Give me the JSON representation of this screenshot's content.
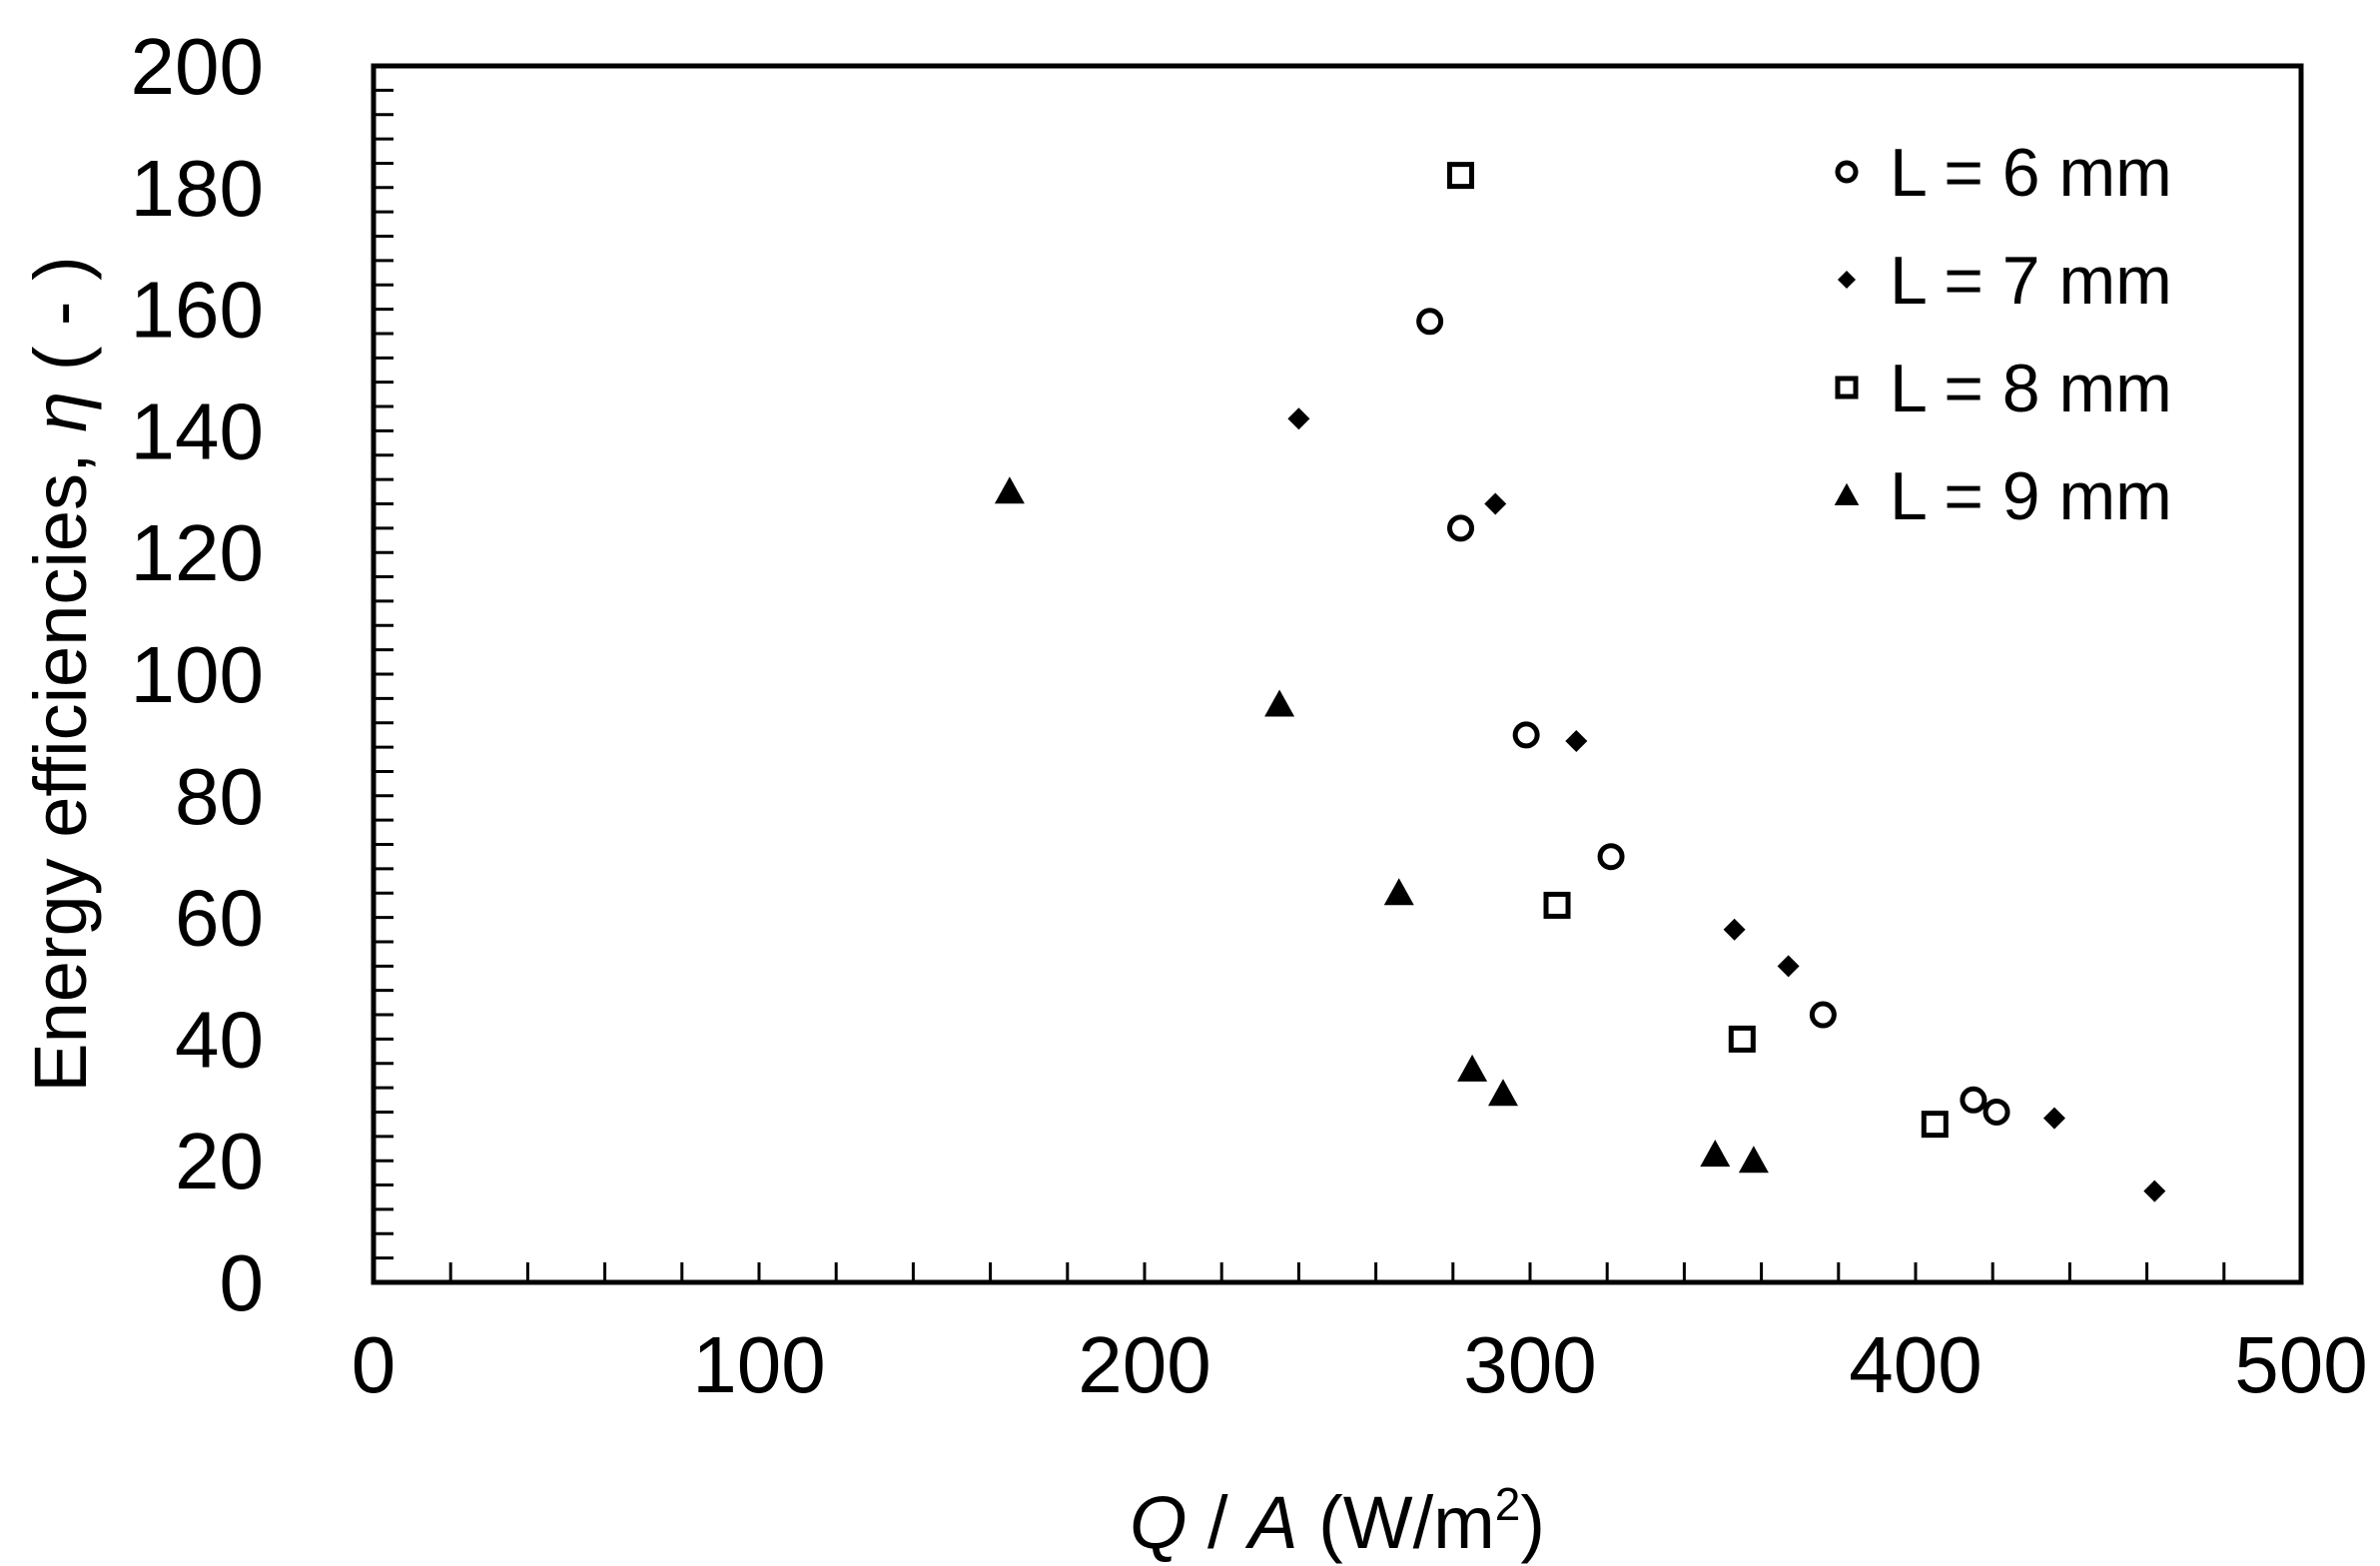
{
  "chart_data": {
    "type": "scatter",
    "xlim": [
      0,
      500
    ],
    "ylim": [
      0,
      200
    ],
    "x_ticks": [
      0,
      100,
      200,
      300,
      400,
      500
    ],
    "y_ticks": [
      0,
      20,
      40,
      60,
      80,
      100,
      120,
      140,
      160,
      180,
      200
    ],
    "x_minor_step": 20,
    "y_minor_step": 4,
    "xlabel": {
      "var1": "Q",
      "sep": " / ",
      "var2": "A",
      "unit_prefix": " (W/m",
      "unit_sup": "2",
      "unit_suffix": ")"
    },
    "ylabel": {
      "prefix": "Energy efficiencies, ",
      "symbol": "η",
      "suffix": " ( - )"
    },
    "grid": false,
    "legend_position": "top-right",
    "series": [
      {
        "name": "L = 6 mm",
        "marker": "circle-open",
        "points": [
          {
            "x": 274,
            "y": 158
          },
          {
            "x": 282,
            "y": 124
          },
          {
            "x": 299,
            "y": 90
          },
          {
            "x": 321,
            "y": 70
          },
          {
            "x": 376,
            "y": 44
          },
          {
            "x": 415,
            "y": 30
          },
          {
            "x": 421,
            "y": 28
          }
        ]
      },
      {
        "name": "L = 7 mm",
        "marker": "diamond-filled",
        "points": [
          {
            "x": 240,
            "y": 142
          },
          {
            "x": 291,
            "y": 128
          },
          {
            "x": 312,
            "y": 89
          },
          {
            "x": 353,
            "y": 58
          },
          {
            "x": 367,
            "y": 52
          },
          {
            "x": 436,
            "y": 27
          },
          {
            "x": 462,
            "y": 15
          }
        ]
      },
      {
        "name": "L = 8 mm",
        "marker": "square-open",
        "points": [
          {
            "x": 282,
            "y": 182
          },
          {
            "x": 307,
            "y": 62
          },
          {
            "x": 355,
            "y": 40
          },
          {
            "x": 405,
            "y": 26
          }
        ]
      },
      {
        "name": "L = 9 mm",
        "marker": "triangle-filled",
        "points": [
          {
            "x": 165,
            "y": 130
          },
          {
            "x": 235,
            "y": 95
          },
          {
            "x": 266,
            "y": 64
          },
          {
            "x": 285,
            "y": 35
          },
          {
            "x": 293,
            "y": 31
          },
          {
            "x": 348,
            "y": 21
          },
          {
            "x": 358,
            "y": 20
          }
        ]
      }
    ]
  }
}
